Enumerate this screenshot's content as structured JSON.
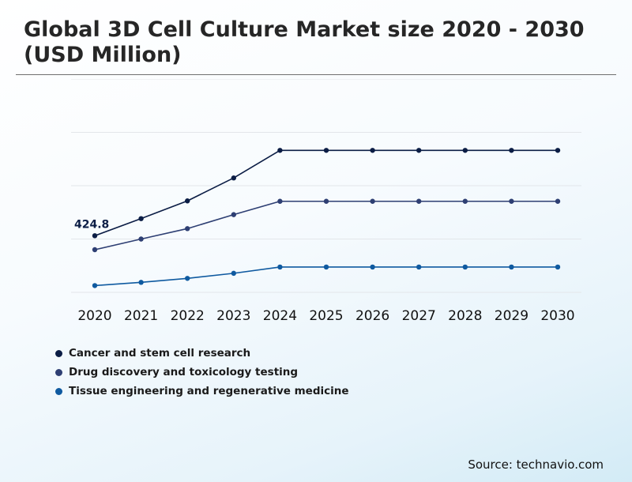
{
  "header": {
    "title": "Global 3D Cell Culture Market size 2020 - 2030 (USD Million)"
  },
  "footer": {
    "source": "Source: technavio.com"
  },
  "chart_data": {
    "type": "line",
    "title": "Global 3D Cell Culture Market size 2020 - 2030 (USD Million)",
    "xlabel": "",
    "ylabel": "",
    "grid": true,
    "y_axis_labels_shown": false,
    "ylim": [
      0,
      1600
    ],
    "categories": [
      "2020",
      "2021",
      "2022",
      "2023",
      "2024",
      "2025",
      "2026",
      "2027",
      "2028",
      "2029",
      "2030"
    ],
    "legend_position": "bottom-left",
    "series": [
      {
        "name": "Cancer and stem cell research",
        "color": "#0b1d45",
        "values": [
          424.8,
          553,
          686,
          858,
          1065,
          1065,
          1065,
          1065,
          1065,
          1065,
          1065
        ]
      },
      {
        "name": "Drug discovery and toxicology testing",
        "color": "#2e3f73",
        "values": [
          320,
          400,
          478,
          583,
          683,
          683,
          683,
          683,
          683,
          683,
          683
        ]
      },
      {
        "name": "Tissue engineering and regenerative medicine",
        "color": "#0f5aa0",
        "values": [
          51,
          75,
          105,
          143,
          190,
          190,
          190,
          190,
          190,
          190,
          190
        ]
      }
    ],
    "annotations": [
      {
        "series": 0,
        "index": 0,
        "text": "424.8"
      }
    ]
  }
}
